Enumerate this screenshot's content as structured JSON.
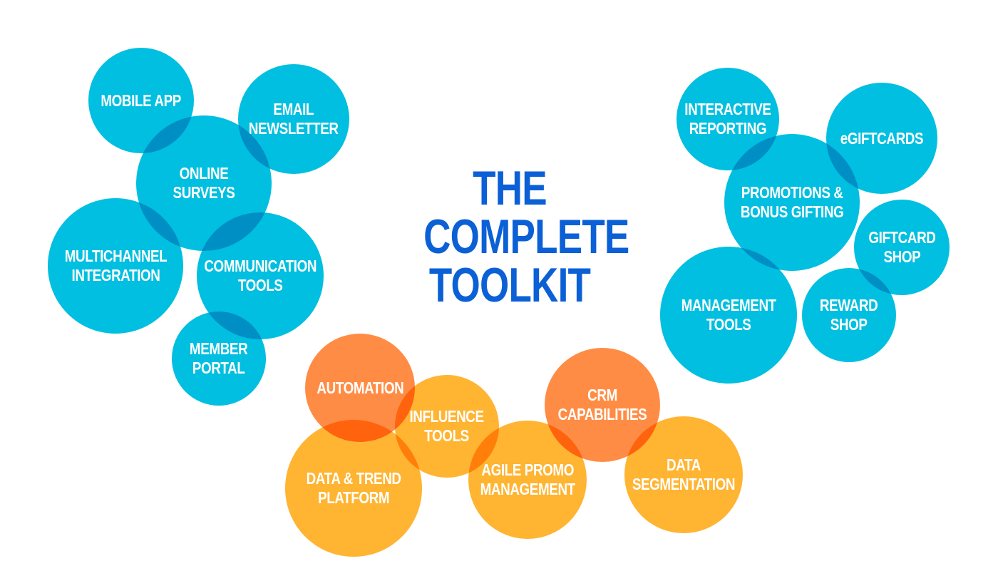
{
  "title": {
    "line1": "THE",
    "line2": "COMPLETE",
    "line3": "TOOLKIT"
  },
  "colors": {
    "title": "#0b60d6",
    "blue_bubble": "#00bfe0",
    "amber_bubble": "#ffb432",
    "orange_bubble": "#ff8c45",
    "bubble_text": "#ffffff"
  },
  "bubbles": {
    "mobile_app": "MOBILE APP",
    "email_newsletter": "EMAIL\nNEWSLETTER",
    "online_surveys": "ONLINE SURVEYS",
    "multichannel_integration": "MULTICHANNEL\nINTEGRATION",
    "communication_tools": "COMMUNICATION\nTOOLS",
    "member_portal": "MEMBER\nPORTAL",
    "interactive_reporting": "INTERACTIVE\nREPORTING",
    "egiftcards": "eGIFTCARDS",
    "promotions_bonus_gifting": "PROMOTIONS &\nBONUS GIFTING",
    "giftcard_shop": "GIFTCARD\nSHOP",
    "management_tools": "MANAGEMENT\nTOOLS",
    "reward_shop": "REWARD\nSHOP",
    "automation": "AUTOMATION",
    "influence_tools": "INFLUENCE\nTOOLS",
    "data_trend_platform": "DATA & TREND\nPLATFORM",
    "agile_promo_management": "AGILE PROMO\nMANAGEMENT",
    "crm_capabilities": "CRM\nCAPABILITIES",
    "data_segmentation": "DATA\nSEGMENTATION"
  }
}
